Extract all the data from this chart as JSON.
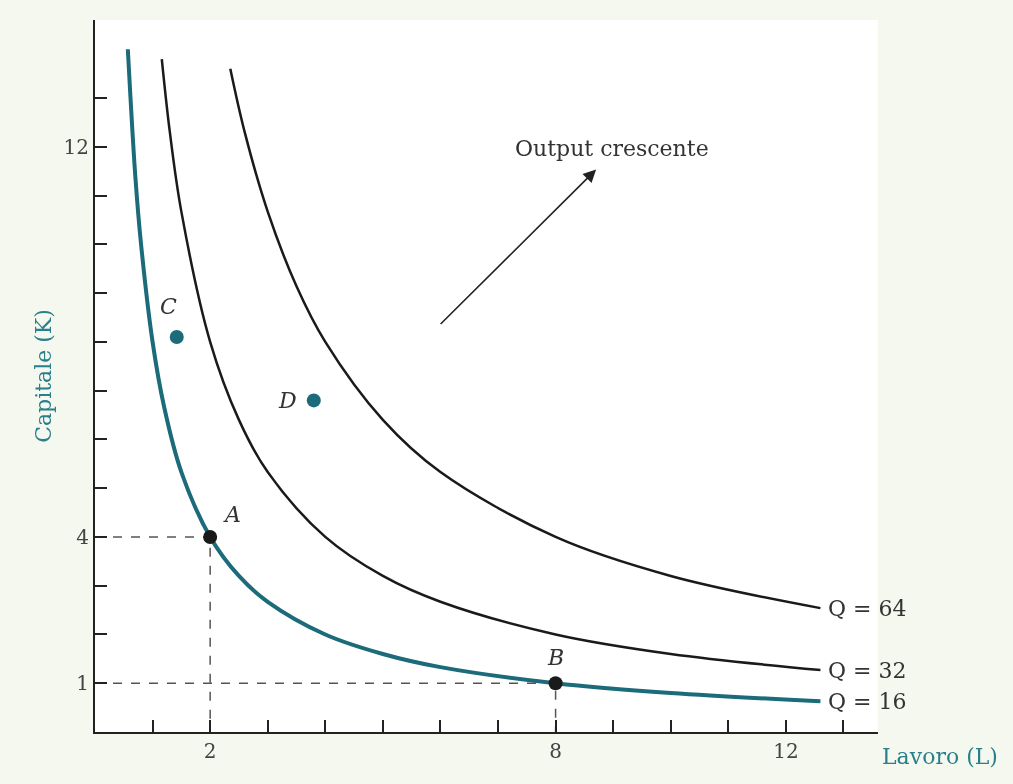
{
  "chart_data": {
    "type": "line",
    "xlabel": "Lavoro (L)",
    "ylabel": "Capitale (K)",
    "xlim": [
      0,
      13.6
    ],
    "ylim": [
      0,
      14.6
    ],
    "xticks": [
      {
        "value": 1,
        "label": null
      },
      2,
      {
        "value": 3,
        "label": null
      },
      {
        "value": 4,
        "label": null
      },
      {
        "value": 5,
        "label": null
      },
      {
        "value": 6,
        "label": null
      },
      {
        "value": 7,
        "label": null
      },
      8,
      {
        "value": 9,
        "label": null
      },
      {
        "value": 10,
        "label": null
      },
      {
        "value": 11,
        "label": null
      },
      12,
      {
        "value": 13,
        "label": null
      }
    ],
    "yticks": [
      1,
      {
        "value": 2,
        "label": null
      },
      {
        "value": 3,
        "label": null
      },
      4,
      {
        "value": 5,
        "label": null
      },
      {
        "value": 6,
        "label": null
      },
      {
        "value": 7,
        "label": null
      },
      {
        "value": 8,
        "label": null
      },
      {
        "value": 9,
        "label": null
      },
      {
        "value": 10,
        "label": null
      },
      {
        "value": 11,
        "label": null
      },
      12,
      {
        "value": 13,
        "label": null
      }
    ],
    "legend": false,
    "series": [
      {
        "name": "Q = 64",
        "color": "#1a1a1a",
        "x": [
          2.35,
          2.6,
          3,
          3.5,
          4,
          5,
          6,
          8,
          10,
          12.6
        ],
        "values": [
          13.6,
          12.3,
          10.67,
          9.14,
          8,
          6.4,
          5.33,
          4,
          3.2,
          2.54
        ]
      },
      {
        "name": "Q = 32",
        "color": "#1a1a1a",
        "x": [
          1.16,
          1.3,
          1.5,
          2,
          2.5,
          3,
          4,
          5,
          6,
          8,
          10,
          12.6
        ],
        "values": [
          13.8,
          12.3,
          10.67,
          8,
          6.4,
          5.33,
          4,
          3.2,
          2.67,
          2,
          1.6,
          1.27
        ]
      },
      {
        "name": "Q = 16",
        "color": "#1b6b7a",
        "x": [
          0.57,
          0.7,
          0.8,
          1,
          1.2,
          1.5,
          2,
          2.5,
          3,
          4,
          5,
          6,
          8,
          10,
          12.6
        ],
        "values": [
          14.0,
          11.4,
          10,
          8,
          6.67,
          5.33,
          4,
          3.2,
          2.67,
          2,
          1.6,
          1.33,
          1,
          0.8,
          0.63
        ]
      },
      {
        "color": "#555555",
        "line_style": "dashed",
        "x": [
          0,
          2,
          2
        ],
        "values": [
          4,
          4,
          0
        ]
      },
      {
        "color": "#555555",
        "line_style": "dashed",
        "x": [
          0,
          8,
          8
        ],
        "values": [
          1,
          1,
          0
        ]
      },
      {
        "type": "scatter",
        "marker": "circle",
        "x": [
          2,
          8,
          1.42,
          3.8
        ],
        "values": [
          4,
          1,
          8.1,
          6.8
        ],
        "colors": [
          "#1a1a1a",
          "#1a1a1a",
          "#1b6b7a",
          "#1b6b7a"
        ]
      }
    ],
    "annotations": [
      {
        "text": "A",
        "x": 2,
        "y": 4
      },
      {
        "text": "B",
        "x": 8,
        "y": 1
      },
      {
        "text": "C",
        "x": 1.42,
        "y": 8.1
      },
      {
        "text": "D",
        "x": 3.8,
        "y": 6.8
      },
      "Output crescente"
    ]
  }
}
